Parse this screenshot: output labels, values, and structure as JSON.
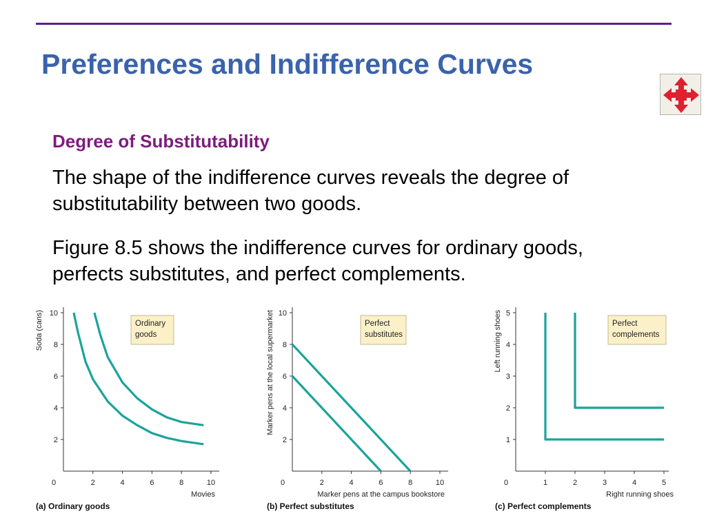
{
  "slide": {
    "title": "Preferences and Indifference Curves",
    "subheading": "Degree of Substitutability",
    "paragraphs": [
      "The shape of the indifference curves reveals the degree of substitutability between two goods.",
      "Figure 8.5 shows the indifference curves for ordinary goods, perfects substitutes, and perfect complements."
    ],
    "nav_icon": "four-way-arrows-icon",
    "colors": {
      "title": "#3a63ab",
      "subheading": "#7d1c7d",
      "rule": "#5a1f8c",
      "curve": "#1aa39a",
      "label_box": "#fbf0c8",
      "nav_arrows": "#e01f2f"
    }
  },
  "chart_data": [
    {
      "type": "line",
      "caption": "(a) Ordinary goods",
      "legend": [
        "Ordinary",
        "goods"
      ],
      "xlabel": "Movies",
      "ylabel": "Soda (cans)",
      "xlim": [
        0,
        10
      ],
      "ylim": [
        0,
        10
      ],
      "xticks": [
        "0",
        "2",
        "4",
        "6",
        "8",
        "10"
      ],
      "yticks": [
        "2",
        "4",
        "6",
        "8",
        "10"
      ],
      "series": [
        {
          "values": [
            [
              0.7,
              10
            ],
            [
              1,
              8.7
            ],
            [
              1.5,
              6.9
            ],
            [
              2,
              5.8
            ],
            [
              3,
              4.4
            ],
            [
              4,
              3.5
            ],
            [
              5,
              2.9
            ],
            [
              6,
              2.4
            ],
            [
              7,
              2.1
            ],
            [
              8,
              1.9
            ],
            [
              9.5,
              1.7
            ]
          ]
        },
        {
          "values": [
            [
              2.1,
              10
            ],
            [
              2.5,
              8.6
            ],
            [
              3,
              7.2
            ],
            [
              4,
              5.6
            ],
            [
              5,
              4.6
            ],
            [
              6,
              3.9
            ],
            [
              7,
              3.4
            ],
            [
              8,
              3.1
            ],
            [
              9.5,
              2.9
            ]
          ]
        }
      ]
    },
    {
      "type": "line",
      "caption": "(b) Perfect substitutes",
      "legend": [
        "Perfect",
        "substitutes"
      ],
      "xlabel": "Marker pens at the campus bookstore",
      "ylabel": "Marker pens at the local supermarket",
      "xlim": [
        0,
        10
      ],
      "ylim": [
        0,
        10
      ],
      "xticks": [
        "0",
        "2",
        "4",
        "6",
        "8",
        "10"
      ],
      "yticks": [
        "2",
        "4",
        "6",
        "8",
        "10"
      ],
      "series": [
        {
          "values": [
            [
              0,
              6
            ],
            [
              6,
              0
            ]
          ]
        },
        {
          "values": [
            [
              0,
              8
            ],
            [
              8,
              0
            ]
          ]
        }
      ]
    },
    {
      "type": "line",
      "caption": "(c) Perfect complements",
      "legend": [
        "Perfect",
        "complements"
      ],
      "xlabel": "Right running shoes",
      "ylabel": "Left running shoes",
      "xlim": [
        0,
        5
      ],
      "ylim": [
        0,
        5
      ],
      "xticks": [
        "0",
        "1",
        "2",
        "3",
        "4",
        "5"
      ],
      "yticks": [
        "1",
        "2",
        "3",
        "4",
        "5"
      ],
      "series": [
        {
          "values": [
            [
              1,
              5
            ],
            [
              1,
              1
            ],
            [
              5,
              1
            ]
          ]
        },
        {
          "values": [
            [
              2,
              5
            ],
            [
              2,
              2
            ],
            [
              5,
              2
            ]
          ]
        }
      ]
    }
  ]
}
